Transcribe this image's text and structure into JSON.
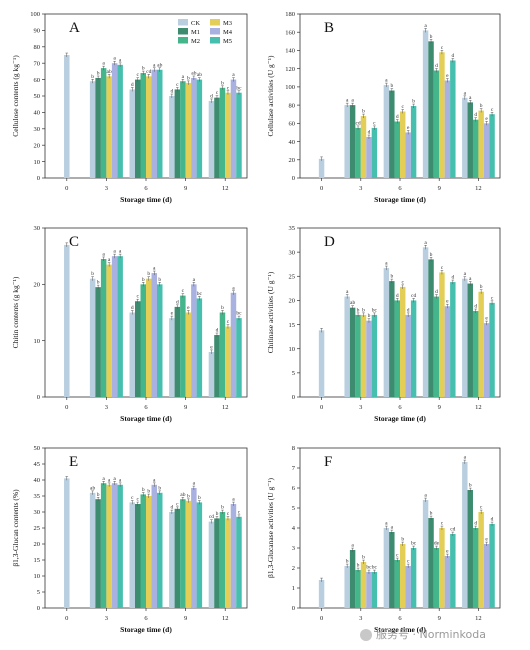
{
  "colors": {
    "CK": "#b9cfe0",
    "M1": "#3d8c70",
    "M2": "#45b58c",
    "M3": "#e3cf58",
    "M4": "#a9b1e1",
    "M5": "#46bfae"
  },
  "legend": [
    "CK",
    "M1",
    "M2",
    "M3",
    "M4",
    "M5"
  ],
  "watermark": "服务号 · Norminkoda",
  "chart_data": [
    {
      "type": "bar",
      "letter": "A",
      "ylabel": "Cellulose contents (g kg⁻¹)",
      "xlabel": "Storage time (d)",
      "categories": [
        "0",
        "3",
        "6",
        "9",
        "12"
      ],
      "ylim": [
        0,
        100
      ],
      "yticks": [
        0,
        10,
        20,
        30,
        40,
        50,
        60,
        70,
        80,
        90,
        100
      ],
      "ck0": 75,
      "groups": [
        {
          "values": [
            59,
            61,
            67,
            62,
            70,
            69
          ],
          "labels": [
            "b",
            "b",
            "a",
            "ab",
            "a",
            "a"
          ]
        },
        {
          "values": [
            54,
            60,
            64,
            62,
            66,
            66
          ],
          "labels": [
            "d",
            "c",
            "b",
            "cd",
            "a",
            "ab"
          ]
        },
        {
          "values": [
            50,
            54,
            59,
            58,
            61,
            60
          ],
          "labels": [
            "d",
            "c",
            "a",
            "b",
            "ab",
            "ab"
          ]
        },
        {
          "values": [
            47,
            49,
            55,
            52,
            60,
            52
          ],
          "labels": [
            "d",
            "c",
            "b",
            "c",
            "a",
            "bc"
          ]
        }
      ]
    },
    {
      "type": "bar",
      "letter": "B",
      "ylabel": "Cellulase activities (U g⁻¹)",
      "xlabel": "Storage time (d)",
      "categories": [
        "0",
        "3",
        "6",
        "9",
        "12"
      ],
      "ylim": [
        0,
        180
      ],
      "yticks": [
        0,
        20,
        40,
        60,
        80,
        100,
        120,
        140,
        160,
        180
      ],
      "ck0": 21,
      "groups": [
        {
          "values": [
            80,
            80,
            55,
            68,
            45,
            55
          ],
          "labels": [
            "a",
            "a",
            "cd",
            "b",
            "d",
            "c"
          ]
        },
        {
          "values": [
            102,
            96,
            62,
            73,
            50,
            79
          ],
          "labels": [
            "a",
            "b",
            "d",
            "c",
            "e",
            "b"
          ]
        },
        {
          "values": [
            162,
            150,
            118,
            138,
            107,
            129
          ],
          "labels": [
            "a",
            "b",
            "d",
            "c",
            "e",
            "d"
          ]
        },
        {
          "values": [
            88,
            83,
            64,
            74,
            60,
            70
          ],
          "labels": [
            "a",
            "a",
            "d",
            "b",
            "e",
            "c"
          ]
        }
      ]
    },
    {
      "type": "bar",
      "letter": "C",
      "ylabel": "Chitin contents (g kg⁻¹)",
      "xlabel": "Storage time (d)",
      "categories": [
        "0",
        "3",
        "6",
        "9",
        "12"
      ],
      "ylim": [
        0,
        30
      ],
      "yticks": [
        0,
        10,
        20,
        30
      ],
      "ck0": 27,
      "groups": [
        {
          "values": [
            21,
            19.5,
            24.5,
            23.5,
            25,
            25
          ],
          "labels": [
            "b",
            "b",
            "a",
            "a",
            "a",
            "a"
          ]
        },
        {
          "values": [
            15,
            17,
            20,
            21,
            22,
            20
          ],
          "labels": [
            "d",
            "c",
            "b",
            "b",
            "a",
            "b"
          ]
        },
        {
          "values": [
            14,
            16,
            18,
            15,
            20,
            17.5
          ],
          "labels": [
            "e",
            "d",
            "c",
            "e",
            "a",
            "bc"
          ]
        },
        {
          "values": [
            8,
            11,
            15,
            12.5,
            18.5,
            14
          ],
          "labels": [
            "e",
            "d",
            "b",
            "c",
            "a",
            "bc"
          ]
        }
      ]
    },
    {
      "type": "bar",
      "letter": "D",
      "ylabel": "Chitinase activities (U g⁻¹)",
      "xlabel": "Storage time (d)",
      "categories": [
        "0",
        "3",
        "6",
        "9",
        "12"
      ],
      "ylim": [
        0,
        35
      ],
      "yticks": [
        0,
        5,
        10,
        15,
        20,
        25,
        30,
        35
      ],
      "ck0": 13.8,
      "groups": [
        {
          "values": [
            20.8,
            18.5,
            17,
            17,
            15.8,
            17
          ],
          "labels": [
            "a",
            "ab",
            "b",
            "b",
            "b",
            "bc"
          ]
        },
        {
          "values": [
            26.7,
            24,
            20,
            22.8,
            17,
            20
          ],
          "labels": [
            "a",
            "b",
            "d",
            "c",
            "d",
            "cd"
          ]
        },
        {
          "values": [
            31,
            28.5,
            20.8,
            25.8,
            18.8,
            23.8
          ],
          "labels": [
            "a",
            "b",
            "d",
            "c",
            "e",
            "d"
          ]
        },
        {
          "values": [
            24.5,
            23.5,
            17.8,
            21.8,
            15.3,
            19.5
          ],
          "labels": [
            "a",
            "a",
            "d",
            "b",
            "e",
            "c"
          ]
        }
      ]
    },
    {
      "type": "bar",
      "letter": "E",
      "ylabel": "β1,3-Glucan contents (%)",
      "xlabel": "Storage time (d)",
      "categories": [
        "0",
        "3",
        "6",
        "9",
        "12"
      ],
      "ylim": [
        0,
        50
      ],
      "yticks": [
        0,
        5,
        10,
        15,
        20,
        25,
        30,
        35,
        40,
        45,
        50
      ],
      "ck0": 40.5,
      "groups": [
        {
          "values": [
            36,
            34,
            39,
            38.5,
            39,
            38.5
          ],
          "labels": [
            "ab",
            "b",
            "a",
            "a",
            "a",
            "a"
          ]
        },
        {
          "values": [
            33,
            32.5,
            35.5,
            35,
            38.5,
            36
          ],
          "labels": [
            "c",
            "c",
            "b",
            "b",
            "a",
            "b"
          ]
        },
        {
          "values": [
            30,
            31,
            34,
            33.5,
            37.5,
            33
          ],
          "labels": [
            "d",
            "c",
            "ab",
            "b",
            "a",
            "b"
          ]
        },
        {
          "values": [
            27,
            28,
            30,
            28,
            32.5,
            28.5
          ],
          "labels": [
            "cd",
            "b",
            "b",
            "c",
            "a",
            "c"
          ]
        }
      ]
    },
    {
      "type": "bar",
      "letter": "F",
      "ylabel": "β1,3-Glucanase activities (U g⁻¹)",
      "xlabel": "Storage time (d)",
      "categories": [
        "0",
        "3",
        "6",
        "9",
        "12"
      ],
      "ylim": [
        0,
        8
      ],
      "yticks": [
        0,
        1,
        2,
        3,
        4,
        5,
        6,
        7,
        8
      ],
      "ck0": 1.4,
      "groups": [
        {
          "values": [
            2.1,
            2.9,
            1.9,
            2.3,
            1.8,
            1.8
          ],
          "labels": [
            "b",
            "a",
            "b",
            "b",
            "bc",
            "bc"
          ]
        },
        {
          "values": [
            4.0,
            3.8,
            2.4,
            3.2,
            2.1,
            3.0
          ],
          "labels": [
            "a",
            "a",
            "c",
            "b",
            "c",
            "bc"
          ]
        },
        {
          "values": [
            5.4,
            4.5,
            3.0,
            4.0,
            2.6,
            3.7
          ],
          "labels": [
            "a",
            "b",
            "de",
            "c",
            "e",
            "cd"
          ]
        },
        {
          "values": [
            7.3,
            5.9,
            4.0,
            4.8,
            3.2,
            4.2
          ],
          "labels": [
            "a",
            "b",
            "d",
            "c",
            "e",
            "d"
          ]
        }
      ]
    }
  ]
}
